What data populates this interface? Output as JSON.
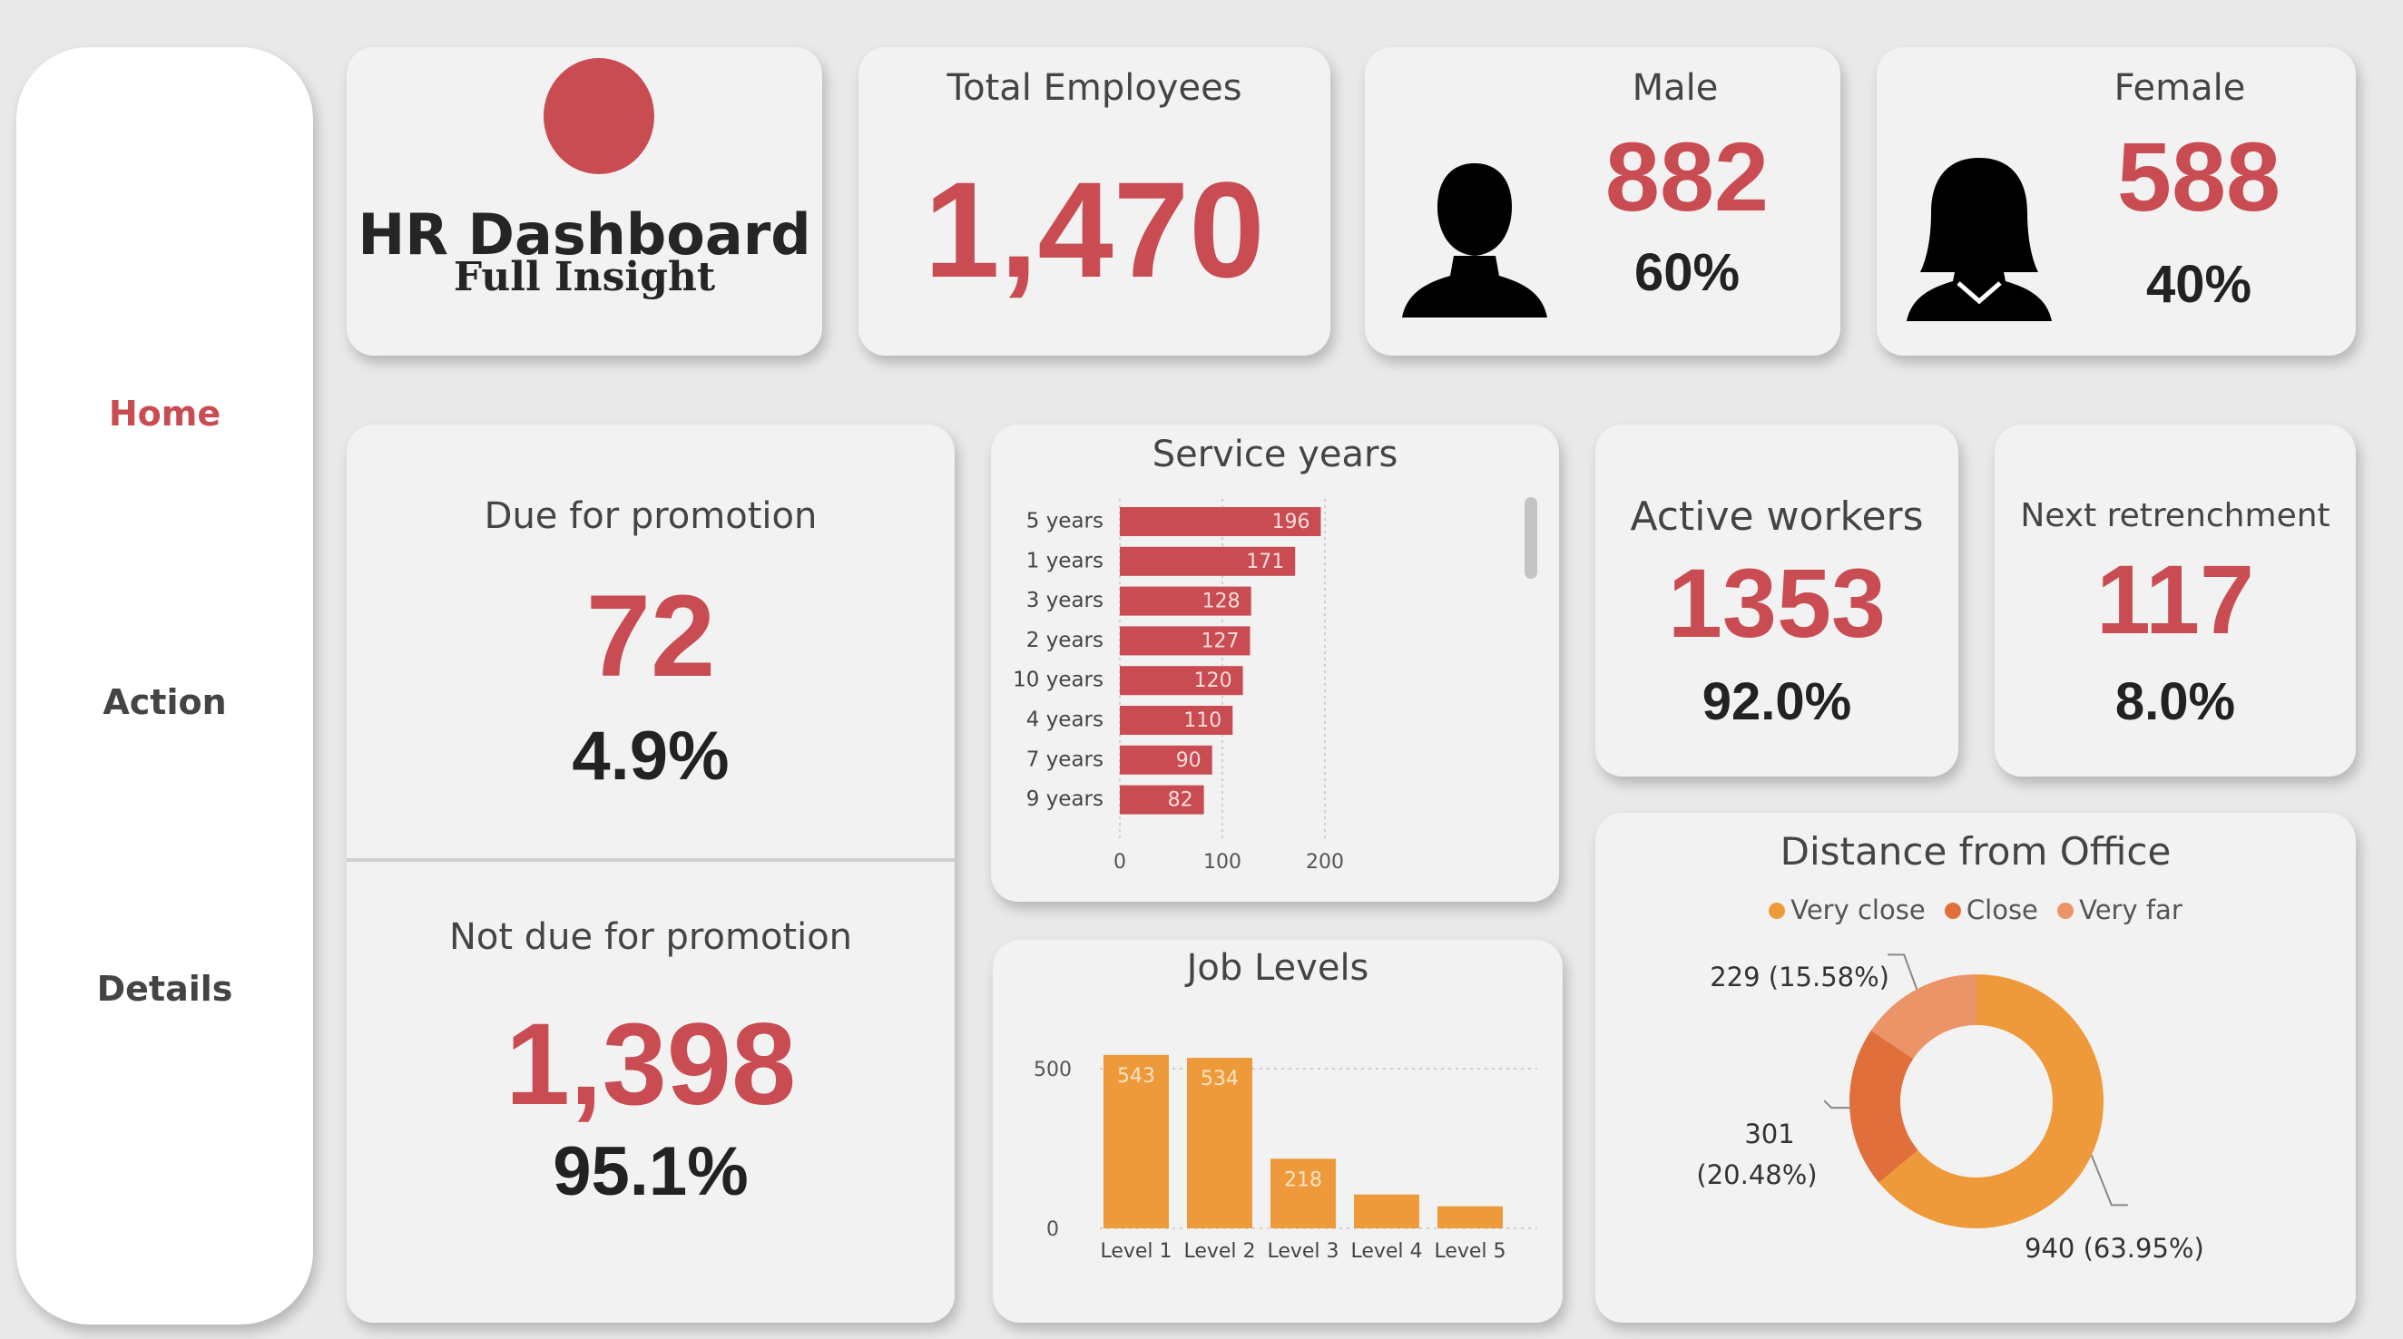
{
  "nav": {
    "home": "Home",
    "action": "Action",
    "details": "Details"
  },
  "logo": {
    "title": "HR Dashboard",
    "subtitle": "Full Insight",
    "dot_color": "#c94c52"
  },
  "kpis": {
    "total_employees": {
      "label": "Total Employees",
      "value": "1,470"
    },
    "male": {
      "label": "Male",
      "value": "882",
      "pct": "60%",
      "icon": "male-person-icon"
    },
    "female": {
      "label": "Female",
      "value": "588",
      "pct": "40%",
      "icon": "female-person-icon"
    },
    "due_promotion": {
      "label": "Due for promotion",
      "value": "72",
      "pct": "4.9%"
    },
    "not_due_promotion": {
      "label": "Not due for promotion",
      "value": "1,398",
      "pct": "95.1%"
    },
    "active_workers": {
      "label": "Active workers",
      "value": "1353",
      "pct": "92.0%"
    },
    "next_retrenchment": {
      "label": "Next retrenchment",
      "value": "117",
      "pct": "8.0%"
    }
  },
  "colors": {
    "accent_red": "#c94c52",
    "bar_orange": "#ef9a3a",
    "donut_very_close": "#ef9a3a",
    "donut_close": "#e06f3c",
    "donut_very_far": "#eb9468"
  },
  "chart_data": [
    {
      "type": "bar",
      "orientation": "horizontal",
      "title": "Service years",
      "categories": [
        "5 years",
        "1 years",
        "3 years",
        "2 years",
        "10 years",
        "4 years",
        "7 years",
        "9 years"
      ],
      "values": [
        196,
        171,
        128,
        127,
        120,
        110,
        90,
        82
      ],
      "x_ticks": [
        "0",
        "100",
        "200"
      ],
      "xlim": [
        0,
        200
      ],
      "grid": true,
      "color": "#c94c52"
    },
    {
      "type": "bar",
      "title": "Job Levels",
      "categories": [
        "Level 1",
        "Level 2",
        "Level 3",
        "Level 4",
        "Level 5"
      ],
      "values": [
        543,
        534,
        218,
        106,
        69
      ],
      "data_labels": [
        "543",
        "534",
        "218",
        "",
        ""
      ],
      "y_ticks": [
        "0",
        "500"
      ],
      "ylim": [
        0,
        560
      ],
      "grid": true,
      "color": "#ef9a3a"
    },
    {
      "type": "pie",
      "variant": "donut",
      "title": "Distance from Office",
      "legend_position": "top",
      "series": [
        {
          "name": "Very close",
          "value": 940,
          "label": "940 (63.95%)",
          "color": "#ef9a3a"
        },
        {
          "name": "Close",
          "value": 301,
          "label": "301 (20.48%)",
          "color": "#e06f3c"
        },
        {
          "name": "Very far",
          "value": 229,
          "label": "229 (15.58%)",
          "color": "#eb9468"
        }
      ]
    }
  ]
}
